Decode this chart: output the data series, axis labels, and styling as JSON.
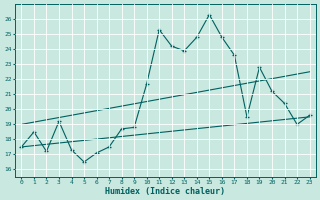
{
  "x": [
    0,
    1,
    2,
    3,
    4,
    5,
    6,
    7,
    8,
    9,
    10,
    11,
    12,
    13,
    14,
    15,
    16,
    17,
    18,
    19,
    20,
    21,
    22,
    23
  ],
  "main_line": [
    17.5,
    18.5,
    17.2,
    19.2,
    17.3,
    16.5,
    17.1,
    17.5,
    18.7,
    18.8,
    21.7,
    25.3,
    24.2,
    23.9,
    24.8,
    26.3,
    24.8,
    23.6,
    19.5,
    22.8,
    21.2,
    20.4,
    19.0,
    19.6
  ],
  "trend_line1_x": [
    0,
    23
  ],
  "trend_line1_y": [
    17.5,
    19.5
  ],
  "trend_line2_x": [
    0,
    23
  ],
  "trend_line2_y": [
    19.0,
    22.5
  ],
  "xlim": [
    -0.5,
    23.5
  ],
  "ylim": [
    15.5,
    27.0
  ],
  "yticks": [
    16,
    17,
    18,
    19,
    20,
    21,
    22,
    23,
    24,
    25,
    26
  ],
  "xticks": [
    0,
    1,
    2,
    3,
    4,
    5,
    6,
    7,
    8,
    9,
    10,
    11,
    12,
    13,
    14,
    15,
    16,
    17,
    18,
    19,
    20,
    21,
    22,
    23
  ],
  "xlabel": "Humidex (Indice chaleur)",
  "bg_color": "#c8e8e0",
  "line_color": "#006060",
  "grid_color": "#ffffff",
  "title": ""
}
